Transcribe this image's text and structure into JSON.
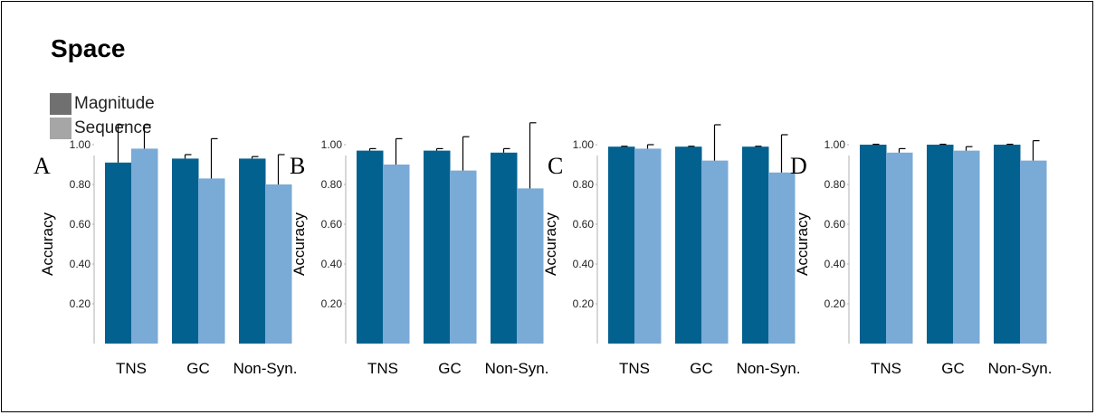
{
  "title": "Space",
  "legend": [
    {
      "label": "Magnitude",
      "color": "#707070"
    },
    {
      "label": "Sequence",
      "color": "#a6a6a6"
    }
  ],
  "series_colors": {
    "Magnitude": "#03618f",
    "Sequence": "#7aaad6"
  },
  "chart_data": [
    {
      "type": "bar",
      "panel": "A",
      "ylabel": "Accuracy",
      "yticks": [
        "0.20",
        "0.40",
        "0.60",
        "0.80",
        "1.00"
      ],
      "ylim": [
        0,
        1.1
      ],
      "categories": [
        "TNS",
        "GC",
        "Non-Syn."
      ],
      "series": [
        {
          "name": "Magnitude",
          "values": [
            0.91,
            0.93,
            0.93
          ],
          "errors": [
            0.19,
            0.02,
            0.01
          ]
        },
        {
          "name": "Sequence",
          "values": [
            0.98,
            0.83,
            0.8
          ],
          "errors": [
            0.12,
            0.2,
            0.15
          ]
        }
      ]
    },
    {
      "type": "bar",
      "panel": "B",
      "ylabel": "Accuracy",
      "yticks": [
        "0.20",
        "0.40",
        "0.60",
        "0.80",
        "1.00"
      ],
      "ylim": [
        0,
        1.1
      ],
      "categories": [
        "TNS",
        "GC",
        "Non-Syn."
      ],
      "series": [
        {
          "name": "Magnitude",
          "values": [
            0.97,
            0.97,
            0.96
          ],
          "errors": [
            0.01,
            0.01,
            0.02
          ]
        },
        {
          "name": "Sequence",
          "values": [
            0.9,
            0.87,
            0.78
          ],
          "errors": [
            0.13,
            0.17,
            0.33
          ]
        }
      ]
    },
    {
      "type": "bar",
      "panel": "C",
      "ylabel": "Accuracy",
      "yticks": [
        "0.20",
        "0.40",
        "0.60",
        "0.80",
        "1.00"
      ],
      "ylim": [
        0,
        1.1
      ],
      "categories": [
        "TNS",
        "GC",
        "Non-Syn."
      ],
      "series": [
        {
          "name": "Magnitude",
          "values": [
            0.99,
            0.99,
            0.99
          ],
          "errors": [
            0.002,
            0.002,
            0.002
          ]
        },
        {
          "name": "Sequence",
          "values": [
            0.98,
            0.92,
            0.86
          ],
          "errors": [
            0.02,
            0.18,
            0.19
          ]
        }
      ]
    },
    {
      "type": "bar",
      "panel": "D",
      "ylabel": "Accuracy",
      "yticks": [
        "0.20",
        "0.40",
        "0.60",
        "0.80",
        "1.00"
      ],
      "ylim": [
        0,
        1.1
      ],
      "categories": [
        "TNS",
        "GC",
        "Non-Syn."
      ],
      "series": [
        {
          "name": "Magnitude",
          "values": [
            1.0,
            1.0,
            1.0
          ],
          "errors": [
            0.002,
            0.002,
            0.002
          ]
        },
        {
          "name": "Sequence",
          "values": [
            0.96,
            0.97,
            0.92
          ],
          "errors": [
            0.02,
            0.02,
            0.1
          ]
        }
      ]
    }
  ]
}
